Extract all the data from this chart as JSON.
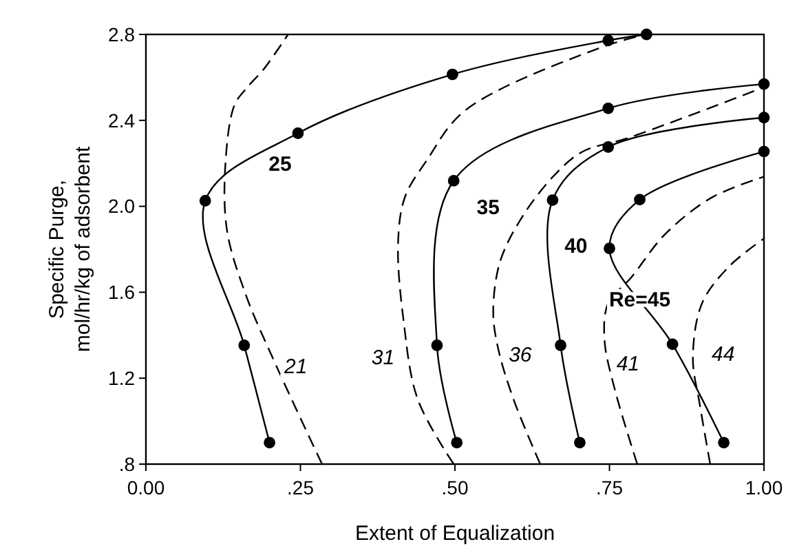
{
  "chart_data": {
    "type": "line",
    "xlabel": "Extent of Equalization",
    "ylabel": "Specific Purge,\nmol/hr/kg of adsorbent",
    "xlim": [
      0,
      1
    ],
    "ylim": [
      0.8,
      2.8
    ],
    "xticks": [
      {
        "value": 0,
        "label": "0.00"
      },
      {
        "value": 0.25,
        "label": ".25"
      },
      {
        "value": 0.5,
        "label": ".50"
      },
      {
        "value": 0.75,
        "label": ".75"
      },
      {
        "value": 1,
        "label": "1.00"
      }
    ],
    "yticks": [
      {
        "value": 0.8,
        "label": ".8"
      },
      {
        "value": 1.2,
        "label": "1.2"
      },
      {
        "value": 1.6,
        "label": "1.6"
      },
      {
        "value": 2.0,
        "label": "2.0"
      },
      {
        "value": 2.4,
        "label": "2.4"
      },
      {
        "value": 2.8,
        "label": "2.8"
      }
    ],
    "grid": false,
    "series": [
      {
        "name": "25",
        "color": "#000000",
        "line_style": "solid",
        "marker": "circle",
        "x": [
          0.2,
          0.159,
          0.096,
          0.246,
          0.496,
          0.748,
          0.81
        ],
        "values": [
          0.9,
          1.353,
          2.026,
          2.34,
          2.614,
          2.772,
          2.8
        ]
      },
      {
        "name": "35",
        "color": "#000000",
        "line_style": "solid",
        "marker": "circle",
        "x": [
          0.503,
          0.471,
          0.498,
          0.748,
          1.0
        ],
        "values": [
          0.9,
          1.353,
          2.119,
          2.456,
          2.569
        ]
      },
      {
        "name": "40",
        "color": "#000000",
        "line_style": "solid",
        "marker": "circle",
        "x": [
          0.702,
          0.671,
          0.658,
          0.748,
          1.0
        ],
        "values": [
          0.9,
          1.353,
          2.029,
          2.276,
          2.413
        ]
      },
      {
        "name": "Re=45",
        "color": "#000000",
        "line_style": "solid",
        "marker": "circle",
        "x": [
          0.935,
          0.852,
          0.75,
          0.799,
          1.0
        ],
        "values": [
          0.9,
          1.358,
          1.804,
          2.031,
          2.255
        ]
      },
      {
        "name": "21",
        "color": "#000000",
        "line_style": "dashed",
        "marker": "none",
        "x": [
          0.285,
          0.209,
          0.161,
          0.131,
          0.129,
          0.143,
          0.161,
          0.191,
          0.23
        ],
        "values": [
          0.8,
          1.27,
          1.593,
          1.892,
          2.212,
          2.469,
          2.544,
          2.64,
          2.8
        ]
      },
      {
        "name": "31",
        "color": "#000000",
        "line_style": "dashed",
        "marker": "none",
        "x": [
          0.498,
          0.44,
          0.417,
          0.408,
          0.419,
          0.454,
          0.517,
          0.744,
          0.81
        ],
        "values": [
          0.8,
          1.1,
          1.465,
          1.828,
          2.042,
          2.212,
          2.447,
          2.747,
          2.8
        ]
      },
      {
        "name": "36",
        "color": "#000000",
        "line_style": "dashed",
        "marker": "none",
        "x": [
          0.638,
          0.595,
          0.57,
          0.562,
          0.573,
          0.61,
          0.662,
          0.707,
          0.781,
          1.0
        ],
        "values": [
          0.8,
          1.1,
          1.337,
          1.507,
          1.742,
          1.956,
          2.148,
          2.255,
          2.319,
          2.554
        ]
      },
      {
        "name": "41",
        "color": "#000000",
        "line_style": "dashed",
        "marker": "none",
        "x": [
          0.795,
          0.759,
          0.742,
          0.748,
          0.785,
          0.84,
          0.915,
          1.0
        ],
        "values": [
          0.8,
          1.144,
          1.379,
          1.55,
          1.668,
          1.87,
          2.04,
          2.138
        ]
      },
      {
        "name": "44",
        "color": "#000000",
        "line_style": "dashed",
        "marker": "none",
        "x": [
          0.913,
          0.896,
          0.885,
          0.9,
          0.944,
          1.0
        ],
        "values": [
          0.8,
          1.08,
          1.294,
          1.55,
          1.721,
          1.85
        ]
      }
    ]
  }
}
